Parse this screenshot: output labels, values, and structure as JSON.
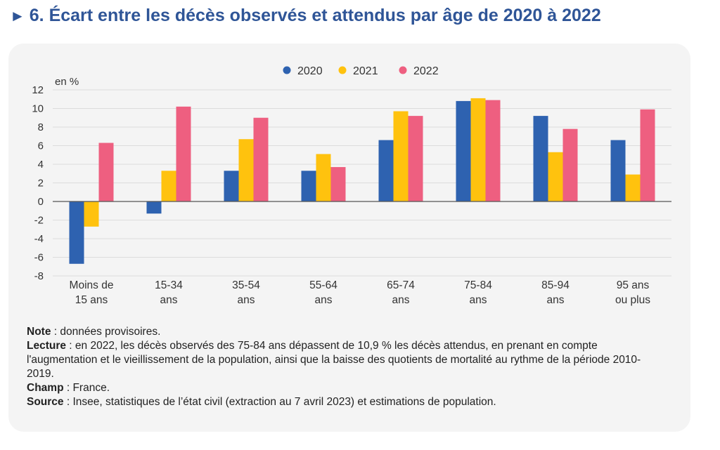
{
  "title": "6. Écart entre les décès observés et attendus par âge de 2020 à 2022",
  "chart_data": {
    "type": "bar",
    "ylabel": "en %",
    "ylim": [
      -8,
      12
    ],
    "yticks": [
      -8,
      -6,
      -4,
      -2,
      0,
      2,
      4,
      6,
      8,
      10,
      12
    ],
    "grid": true,
    "legend": "top-center",
    "categories": [
      [
        "Moins de",
        "15 ans"
      ],
      [
        "15-34",
        "ans"
      ],
      [
        "35-54",
        "ans"
      ],
      [
        "55-64",
        "ans"
      ],
      [
        "65-74",
        "ans"
      ],
      [
        "75-84",
        "ans"
      ],
      [
        "85-94",
        "ans"
      ],
      [
        "95 ans",
        "ou plus"
      ]
    ],
    "series": [
      {
        "name": "2020",
        "color": "#2e62b0",
        "values": [
          -6.7,
          -1.3,
          3.3,
          3.3,
          6.6,
          10.8,
          9.2,
          6.6
        ]
      },
      {
        "name": "2021",
        "color": "#ffc20e",
        "values": [
          -2.7,
          3.3,
          6.7,
          5.1,
          9.7,
          11.1,
          5.3,
          2.9
        ]
      },
      {
        "name": "2022",
        "color": "#ee5f80",
        "values": [
          6.3,
          10.2,
          9.0,
          3.7,
          9.2,
          10.9,
          7.8,
          9.9
        ]
      }
    ]
  },
  "notes": [
    {
      "label": "Note",
      "text": " : données provisoires."
    },
    {
      "label": "Lecture",
      "text": " : en 2022, les décès observés des 75-84 ans dépassent de 10,9 % les décès attendus, en prenant en compte l'augmentation et le vieillissement de la population, ainsi que la baisse des quotients de mortalité au rythme de la période 2010-2019."
    },
    {
      "label": "Champ",
      "text": " : France."
    },
    {
      "label": "Source",
      "text": " : Insee, statistiques de l’état civil (extraction au 7 avril 2023) et estimations de population."
    }
  ]
}
